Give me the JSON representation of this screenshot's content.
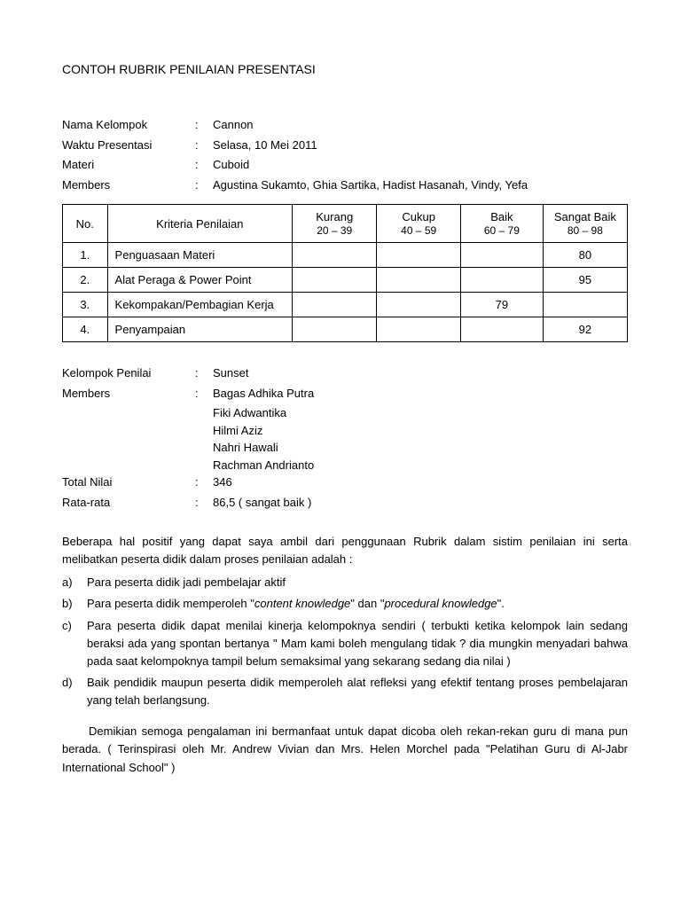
{
  "title": "CONTOH RUBRIK PENILAIAN PRESENTASI",
  "info": {
    "nama_kelompok_label": "Nama Kelompok",
    "nama_kelompok_value": "Cannon",
    "waktu_label": "Waktu Presentasi",
    "waktu_value": "Selasa, 10 Mei 2011",
    "materi_label": "Materi",
    "materi_value": "Cuboid",
    "members_label": "Members",
    "members_value": "Agustina Sukamto, Ghia Sartika, Hadist Hasanah, Vindy, Yefa"
  },
  "table": {
    "headers": {
      "no": "No.",
      "kriteria": "Kriteria Penilaian",
      "kurang": "Kurang",
      "kurang_range": "20 – 39",
      "cukup": "Cukup",
      "cukup_range": "40 – 59",
      "baik": "Baik",
      "baik_range": "60 – 79",
      "sangat_baik": "Sangat Baik",
      "sangat_baik_range": "80 – 98"
    },
    "rows": [
      {
        "no": "1.",
        "kriteria": "Penguasaan Materi",
        "kurang": "",
        "cukup": "",
        "baik": "",
        "sangat_baik": "80"
      },
      {
        "no": "2.",
        "kriteria": "Alat Peraga & Power Point",
        "kurang": "",
        "cukup": "",
        "baik": "",
        "sangat_baik": "95"
      },
      {
        "no": "3.",
        "kriteria": "Kekompakan/Pembagian Kerja",
        "kurang": "",
        "cukup": "",
        "baik": "79",
        "sangat_baik": ""
      },
      {
        "no": "4.",
        "kriteria": "Penyampaian",
        "kurang": "",
        "cukup": "",
        "baik": "",
        "sangat_baik": "92"
      }
    ]
  },
  "section2": {
    "kelompok_penilai_label": "Kelompok Penilai",
    "kelompok_penilai_value": "Sunset",
    "members_label": "Members",
    "members": [
      "Bagas Adhika Putra",
      "Fiki Adwantika",
      "Hilmi Aziz",
      "Nahri Hawali",
      "Rachman Andrianto"
    ],
    "total_label": "Total Nilai",
    "total_value": "346",
    "rata_label": "Rata-rata",
    "rata_value": "86,5 ( sangat baik )"
  },
  "body": {
    "intro": "Beberapa hal positif yang dapat saya ambil dari penggunaan Rubrik dalam sistim penilaian ini serta melibatkan peserta didik dalam proses penilaian adalah :",
    "items": [
      {
        "marker": "a)",
        "text": "Para peserta didik jadi pembelajar aktif"
      },
      {
        "marker": "b)",
        "text_pre": "Para peserta didik memperoleh \"",
        "italic1": "content knowledge",
        "mid": "\" dan \"",
        "italic2": "procedural knowledge",
        "text_post": "\"."
      },
      {
        "marker": "c)",
        "text": "Para peserta didik dapat menilai kinerja kelompoknya sendiri ( terbukti ketika kelompok lain sedang beraksi ada yang spontan bertanya \" Mam kami boleh mengulang tidak ? dia mungkin menyadari bahwa pada saat kelompoknya tampil belum semaksimal yang sekarang sedang dia nilai )"
      },
      {
        "marker": "d)",
        "text": "Baik pendidik maupun peserta didik memperoleh alat refleksi yang efektif tentang proses pembelajaran yang telah berlangsung."
      }
    ],
    "closing": "Demikian semoga pengalaman ini bermanfaat untuk dapat dicoba oleh rekan-rekan guru di mana pun berada. ( Terinspirasi oleh Mr. Andrew Vivian dan Mrs. Helen Morchel  pada \"Pelatihan Guru di Al-Jabr International School\" )"
  }
}
